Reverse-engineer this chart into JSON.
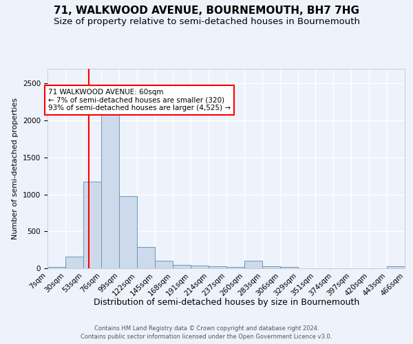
{
  "title": "71, WALKWOOD AVENUE, BOURNEMOUTH, BH7 7HG",
  "subtitle": "Size of property relative to semi-detached houses in Bournemouth",
  "xlabel": "Distribution of semi-detached houses by size in Bournemouth",
  "ylabel": "Number of semi-detached properties",
  "bin_labels": [
    "7sqm",
    "30sqm",
    "53sqm",
    "76sqm",
    "99sqm",
    "122sqm",
    "145sqm",
    "168sqm",
    "191sqm",
    "214sqm",
    "237sqm",
    "260sqm",
    "283sqm",
    "306sqm",
    "329sqm",
    "351sqm",
    "374sqm",
    "397sqm",
    "420sqm",
    "443sqm",
    "466sqm"
  ],
  "bin_edges": [
    7,
    30,
    53,
    76,
    99,
    122,
    145,
    168,
    191,
    214,
    237,
    260,
    283,
    306,
    329,
    351,
    374,
    397,
    420,
    443,
    466
  ],
  "bar_heights": [
    20,
    160,
    1170,
    2080,
    975,
    285,
    100,
    45,
    40,
    30,
    15,
    105,
    30,
    20,
    0,
    0,
    0,
    0,
    0,
    30
  ],
  "bar_color": "#ccdaeb",
  "bar_edge_color": "#6699bb",
  "vline_x": 60,
  "vline_color": "red",
  "annotation_text": "71 WALKWOOD AVENUE: 60sqm\n← 7% of semi-detached houses are smaller (320)\n93% of semi-detached houses are larger (4,525) →",
  "annotation_box_color": "white",
  "annotation_box_edge": "red",
  "ylim": [
    0,
    2700
  ],
  "background_color": "#eef2fa",
  "grid_color": "white",
  "footer_line1": "Contains HM Land Registry data © Crown copyright and database right 2024.",
  "footer_line2": "Contains public sector information licensed under the Open Government Licence v3.0.",
  "title_fontsize": 11,
  "subtitle_fontsize": 9.5,
  "ylabel_fontsize": 8,
  "xlabel_fontsize": 9,
  "tick_fontsize": 7.5,
  "annot_fontsize": 7.5,
  "footer_fontsize": 6
}
